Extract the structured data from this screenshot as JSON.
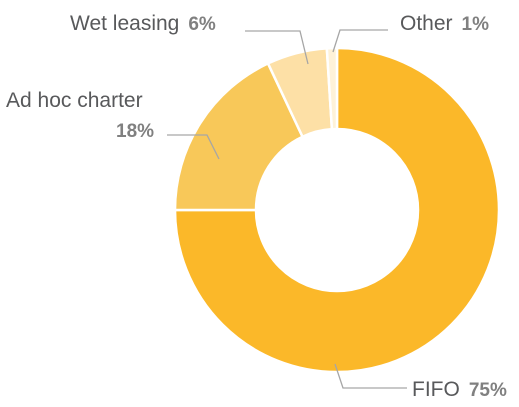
{
  "chart_data": {
    "type": "pie",
    "variant": "donut",
    "title": "",
    "slices": [
      {
        "label": "FIFO",
        "value": 75,
        "value_label": "75%",
        "color": "#fbb829"
      },
      {
        "label": "Ad hoc charter",
        "value": 18,
        "value_label": "18%",
        "color": "#f8c859"
      },
      {
        "label": "Wet leasing",
        "value": 6,
        "value_label": "6%",
        "color": "#fde0a6"
      },
      {
        "label": "Other",
        "value": 1,
        "value_label": "1%",
        "color": "#fef2d8"
      }
    ],
    "legend": "none",
    "slice_border_color": "#ffffff"
  }
}
